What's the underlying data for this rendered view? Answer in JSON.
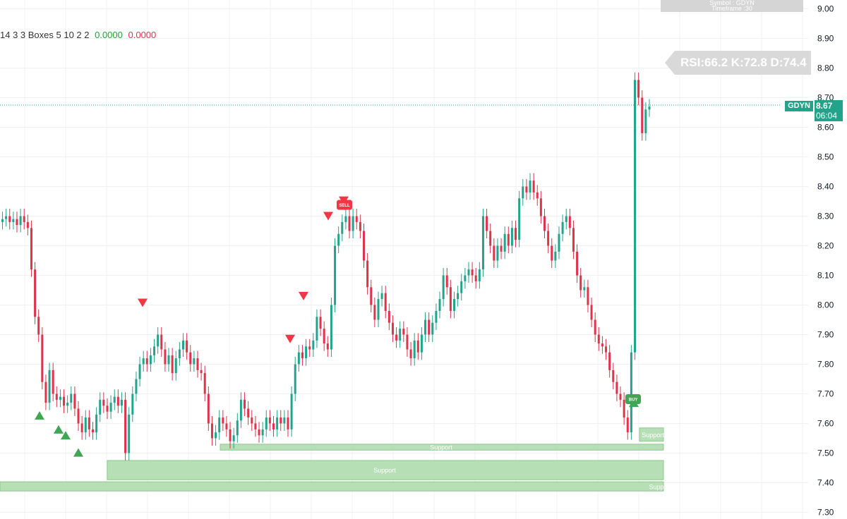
{
  "indicator": {
    "text": "14 3 3 Boxes 5 10 2 2",
    "value_pos": "0.0000",
    "value_neg": "0.0000"
  },
  "top_box": {
    "line1": "Symbol : GDYN",
    "line2": "Timeframe :30"
  },
  "rsi_label": "RSI:66.2   K:72.8  D:74.4",
  "symbol_tag": "GDYN",
  "last_price": "8.67",
  "countdown": "06:04",
  "colors": {
    "up": "#22a38a",
    "down": "#e0334b",
    "support_fill": "#b7dfb6",
    "support_border": "#8cc98c",
    "buy": "#3fa653",
    "sell": "#f23645"
  },
  "chart_data": {
    "type": "candlestick",
    "y_axis": {
      "ticks": [
        "9.00",
        "8.90",
        "8.80",
        "8.70",
        "8.60",
        "8.50",
        "8.40",
        "8.30",
        "8.20",
        "8.10",
        "8.00",
        "7.90",
        "7.80",
        "7.70",
        "7.60",
        "7.50",
        "7.40",
        "7.30"
      ],
      "ylim": [
        7.28,
        9.02
      ]
    },
    "grid": true,
    "last_price": 8.67,
    "series_close": [
      8.29,
      8.3,
      8.28,
      8.29,
      8.27,
      8.3,
      8.28,
      8.26,
      8.12,
      7.96,
      7.9,
      7.74,
      7.67,
      7.78,
      7.7,
      7.68,
      7.69,
      7.66,
      7.67,
      7.7,
      7.65,
      7.6,
      7.57,
      7.62,
      7.58,
      7.57,
      7.63,
      7.68,
      7.66,
      7.64,
      7.67,
      7.69,
      7.66,
      7.68,
      7.5,
      7.63,
      7.7,
      7.75,
      7.8,
      7.82,
      7.8,
      7.83,
      7.86,
      7.9,
      7.85,
      7.8,
      7.83,
      7.77,
      7.82,
      7.85,
      7.88,
      7.84,
      7.8,
      7.82,
      7.78,
      7.77,
      7.7,
      7.6,
      7.55,
      7.57,
      7.62,
      7.6,
      7.58,
      7.54,
      7.56,
      7.61,
      7.68,
      7.65,
      7.62,
      7.6,
      7.58,
      7.56,
      7.58,
      7.62,
      7.6,
      7.58,
      7.62,
      7.6,
      7.62,
      7.58,
      7.7,
      7.8,
      7.84,
      7.82,
      7.86,
      7.85,
      7.88,
      7.96,
      7.92,
      7.87,
      7.85,
      8.0,
      8.2,
      8.24,
      8.28,
      8.3,
      8.25,
      8.3,
      8.28,
      8.25,
      8.15,
      8.06,
      8.0,
      7.95,
      8.02,
      8.04,
      7.98,
      7.94,
      7.9,
      7.88,
      7.92,
      7.9,
      7.85,
      7.82,
      7.88,
      7.84,
      7.9,
      7.95,
      7.9,
      7.94,
      7.98,
      8.02,
      8.1,
      8.06,
      7.98,
      8.02,
      8.04,
      8.08,
      8.1,
      8.12,
      8.1,
      8.08,
      8.12,
      8.3,
      8.25,
      8.2,
      8.15,
      8.2,
      8.18,
      8.24,
      8.2,
      8.26,
      8.22,
      8.36,
      8.4,
      8.38,
      8.42,
      8.38,
      8.36,
      8.3,
      8.25,
      8.2,
      8.15,
      8.18,
      8.24,
      8.28,
      8.3,
      8.26,
      8.18,
      8.1,
      8.05,
      8.06,
      8.0,
      7.95,
      7.9,
      7.87,
      7.86,
      7.84,
      7.78,
      7.74,
      7.7,
      7.68,
      7.62,
      7.57,
      7.84,
      8.76,
      8.7,
      8.58,
      8.66,
      8.67
    ]
  }
}
